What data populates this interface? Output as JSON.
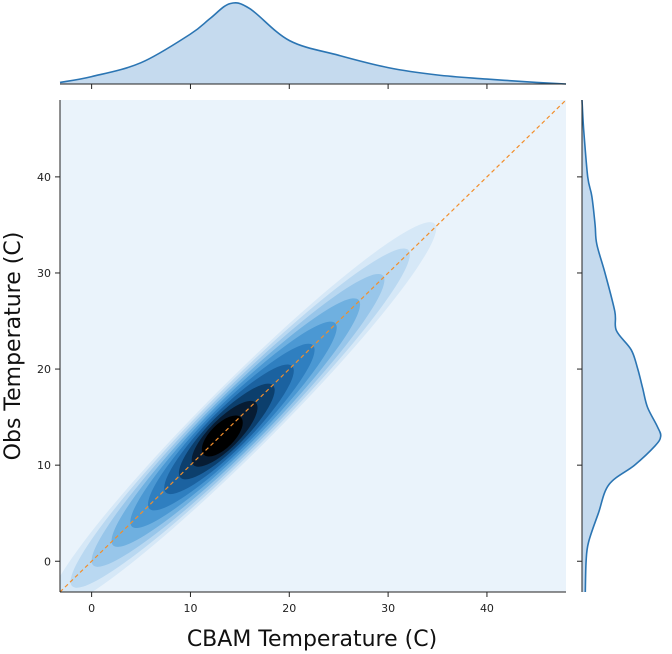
{
  "chart_data": {
    "type": "kde-jointplot",
    "xlabel": "CBAM Temperature (C)",
    "ylabel": "Obs Temperature (C)",
    "xlim": [
      -3.2,
      48
    ],
    "ylim": [
      -3.2,
      48
    ],
    "xticks": [
      0,
      10,
      20,
      30,
      40
    ],
    "yticks": [
      0,
      10,
      20,
      30,
      40
    ],
    "xtick_labels": [
      "0",
      "10",
      "20",
      "30",
      "40"
    ],
    "ytick_labels": [
      "0",
      "10",
      "20",
      "30",
      "40"
    ],
    "reference_line": {
      "style": "dashed",
      "x": [
        -3.2,
        48
      ],
      "y": [
        -3.2,
        48
      ],
      "color": "#f28e2b"
    },
    "density_peak": {
      "x": 13,
      "y": 12.8
    },
    "contour_levels": 9,
    "marginal_x": {
      "x": [
        -3.2,
        0,
        5,
        10,
        12,
        14,
        16,
        20,
        25,
        30,
        35,
        40,
        45,
        48
      ],
      "density": [
        0.02,
        0.09,
        0.26,
        0.61,
        0.8,
        0.98,
        0.92,
        0.53,
        0.35,
        0.2,
        0.11,
        0.06,
        0.02,
        0.0
      ]
    },
    "marginal_y": {
      "y": [
        -3.2,
        0,
        2,
        5,
        8,
        10,
        12,
        13,
        14,
        16,
        18,
        20,
        22,
        24,
        26,
        30,
        33,
        35,
        38,
        40,
        45,
        48
      ],
      "density": [
        0.04,
        0.05,
        0.08,
        0.2,
        0.33,
        0.64,
        0.89,
        0.96,
        0.92,
        0.8,
        0.74,
        0.68,
        0.6,
        0.42,
        0.4,
        0.28,
        0.18,
        0.16,
        0.12,
        0.07,
        0.02,
        0.0
      ]
    },
    "colors": {
      "plot_background": "#eaf3fb",
      "contour_colors": [
        "#d6e8f7",
        "#b9d8f1",
        "#98c6ea",
        "#6fb0e0",
        "#4b98d3",
        "#2f7fc0",
        "#1b62a0",
        "#0c3f6d",
        "#071c33",
        "#000000"
      ],
      "marginal_line": "#2b75b3",
      "marginal_fill": "#c5daee",
      "reference_line": "#f28e2b"
    }
  }
}
